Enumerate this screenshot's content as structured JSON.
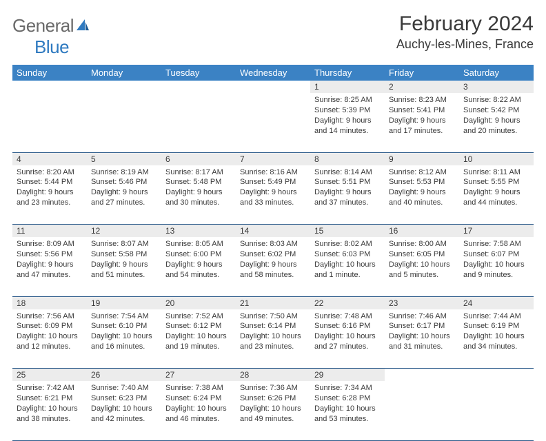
{
  "logo": {
    "general": "General",
    "blue": "Blue"
  },
  "title": "February 2024",
  "location": "Auchy-les-Mines, France",
  "colors": {
    "header_bg": "#3b82c4",
    "header_text": "#ffffff",
    "daynum_bg": "#ececec",
    "rule": "#2b5a8a",
    "text": "#3a3a3a",
    "logo_gray": "#6a6a6a",
    "logo_blue": "#2f7ac0"
  },
  "day_headers": [
    "Sunday",
    "Monday",
    "Tuesday",
    "Wednesday",
    "Thursday",
    "Friday",
    "Saturday"
  ],
  "weeks": [
    [
      null,
      null,
      null,
      null,
      {
        "n": "1",
        "sr": "8:25 AM",
        "ss": "5:39 PM",
        "dl": "9 hours and 14 minutes."
      },
      {
        "n": "2",
        "sr": "8:23 AM",
        "ss": "5:41 PM",
        "dl": "9 hours and 17 minutes."
      },
      {
        "n": "3",
        "sr": "8:22 AM",
        "ss": "5:42 PM",
        "dl": "9 hours and 20 minutes."
      }
    ],
    [
      {
        "n": "4",
        "sr": "8:20 AM",
        "ss": "5:44 PM",
        "dl": "9 hours and 23 minutes."
      },
      {
        "n": "5",
        "sr": "8:19 AM",
        "ss": "5:46 PM",
        "dl": "9 hours and 27 minutes."
      },
      {
        "n": "6",
        "sr": "8:17 AM",
        "ss": "5:48 PM",
        "dl": "9 hours and 30 minutes."
      },
      {
        "n": "7",
        "sr": "8:16 AM",
        "ss": "5:49 PM",
        "dl": "9 hours and 33 minutes."
      },
      {
        "n": "8",
        "sr": "8:14 AM",
        "ss": "5:51 PM",
        "dl": "9 hours and 37 minutes."
      },
      {
        "n": "9",
        "sr": "8:12 AM",
        "ss": "5:53 PM",
        "dl": "9 hours and 40 minutes."
      },
      {
        "n": "10",
        "sr": "8:11 AM",
        "ss": "5:55 PM",
        "dl": "9 hours and 44 minutes."
      }
    ],
    [
      {
        "n": "11",
        "sr": "8:09 AM",
        "ss": "5:56 PM",
        "dl": "9 hours and 47 minutes."
      },
      {
        "n": "12",
        "sr": "8:07 AM",
        "ss": "5:58 PM",
        "dl": "9 hours and 51 minutes."
      },
      {
        "n": "13",
        "sr": "8:05 AM",
        "ss": "6:00 PM",
        "dl": "9 hours and 54 minutes."
      },
      {
        "n": "14",
        "sr": "8:03 AM",
        "ss": "6:02 PM",
        "dl": "9 hours and 58 minutes."
      },
      {
        "n": "15",
        "sr": "8:02 AM",
        "ss": "6:03 PM",
        "dl": "10 hours and 1 minute."
      },
      {
        "n": "16",
        "sr": "8:00 AM",
        "ss": "6:05 PM",
        "dl": "10 hours and 5 minutes."
      },
      {
        "n": "17",
        "sr": "7:58 AM",
        "ss": "6:07 PM",
        "dl": "10 hours and 9 minutes."
      }
    ],
    [
      {
        "n": "18",
        "sr": "7:56 AM",
        "ss": "6:09 PM",
        "dl": "10 hours and 12 minutes."
      },
      {
        "n": "19",
        "sr": "7:54 AM",
        "ss": "6:10 PM",
        "dl": "10 hours and 16 minutes."
      },
      {
        "n": "20",
        "sr": "7:52 AM",
        "ss": "6:12 PM",
        "dl": "10 hours and 19 minutes."
      },
      {
        "n": "21",
        "sr": "7:50 AM",
        "ss": "6:14 PM",
        "dl": "10 hours and 23 minutes."
      },
      {
        "n": "22",
        "sr": "7:48 AM",
        "ss": "6:16 PM",
        "dl": "10 hours and 27 minutes."
      },
      {
        "n": "23",
        "sr": "7:46 AM",
        "ss": "6:17 PM",
        "dl": "10 hours and 31 minutes."
      },
      {
        "n": "24",
        "sr": "7:44 AM",
        "ss": "6:19 PM",
        "dl": "10 hours and 34 minutes."
      }
    ],
    [
      {
        "n": "25",
        "sr": "7:42 AM",
        "ss": "6:21 PM",
        "dl": "10 hours and 38 minutes."
      },
      {
        "n": "26",
        "sr": "7:40 AM",
        "ss": "6:23 PM",
        "dl": "10 hours and 42 minutes."
      },
      {
        "n": "27",
        "sr": "7:38 AM",
        "ss": "6:24 PM",
        "dl": "10 hours and 46 minutes."
      },
      {
        "n": "28",
        "sr": "7:36 AM",
        "ss": "6:26 PM",
        "dl": "10 hours and 49 minutes."
      },
      {
        "n": "29",
        "sr": "7:34 AM",
        "ss": "6:28 PM",
        "dl": "10 hours and 53 minutes."
      },
      null,
      null
    ]
  ],
  "labels": {
    "sunrise": "Sunrise:",
    "sunset": "Sunset:",
    "daylight": "Daylight:"
  }
}
